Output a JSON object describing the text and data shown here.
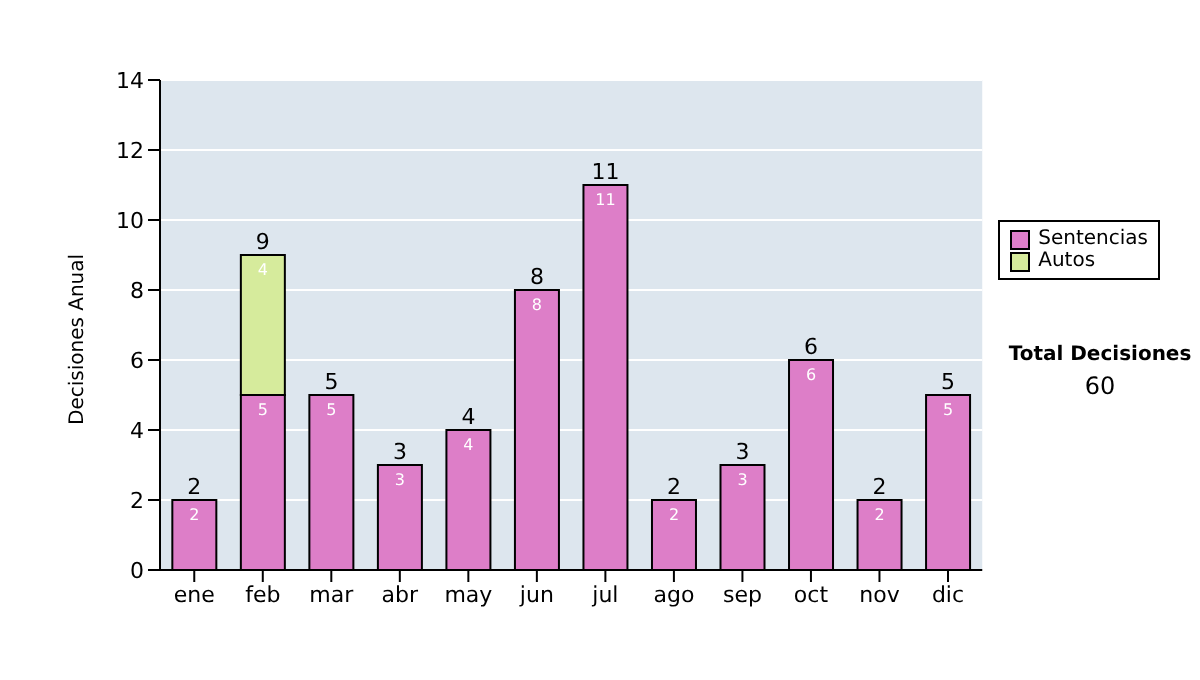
{
  "chart_data": {
    "type": "bar",
    "stacked": true,
    "ylabel": "Decisiones Anual",
    "categories": [
      "ene",
      "feb",
      "mar",
      "abr",
      "may",
      "jun",
      "jul",
      "ago",
      "sep",
      "oct",
      "nov",
      "dic"
    ],
    "series": [
      {
        "name": "Sentencias",
        "color": "#dd7ec8",
        "values": [
          2,
          5,
          5,
          3,
          4,
          8,
          11,
          2,
          3,
          6,
          2,
          5
        ],
        "value_labels": [
          "2",
          "5",
          "5",
          "3",
          "4",
          "8",
          "11",
          "2",
          "3",
          "6",
          "2",
          "5"
        ]
      },
      {
        "name": "Autos",
        "color": "#d6eb9c",
        "values": [
          null,
          4,
          null,
          null,
          null,
          null,
          null,
          null,
          null,
          null,
          null,
          null
        ],
        "value_labels": [
          null,
          "4",
          null,
          null,
          null,
          null,
          null,
          null,
          null,
          null,
          null,
          null
        ]
      }
    ],
    "totals": [
      "2",
      "9",
      "5",
      "3",
      "4",
      "8",
      "11",
      "2",
      "3",
      "6",
      "2",
      "5"
    ],
    "ylim": [
      0,
      14
    ],
    "yticks": [
      0,
      2,
      4,
      6,
      8,
      10,
      12,
      14
    ],
    "grid": "y",
    "legend": "right",
    "annotations": [
      "Total Decisiones",
      "60"
    ]
  }
}
